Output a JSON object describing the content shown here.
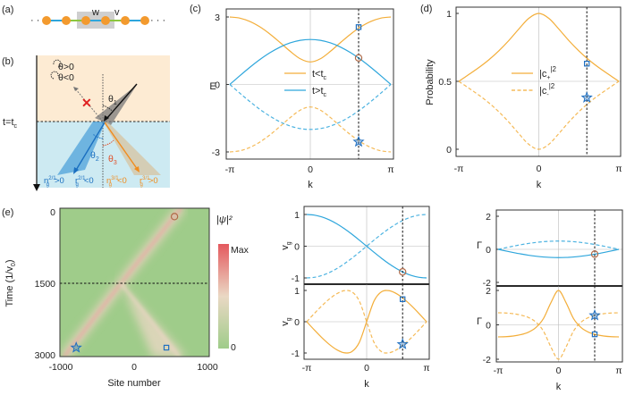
{
  "panel_labels": {
    "a": "(a)",
    "b": "(b)",
    "c": "(c)",
    "d": "(d)",
    "e": "(e)"
  },
  "colors": {
    "orange": "#f3ae3a",
    "blue": "#2ea6dc",
    "marker_blue": "#1f6fc0",
    "marker_brown": "#b06a48",
    "heat_low": "#9fcc8a",
    "heat_high": "#e4595e",
    "top_region": "#fdebd3",
    "bottom_region": "#cdeaf2"
  },
  "panel_a": {
    "dots": "· · ·",
    "w": "w",
    "v": "v"
  },
  "panel_b": {
    "theta_pos": "θ>0",
    "theta_neg": "θ<0",
    "t_label": "t=t",
    "t_sub": "c",
    "theta1": "θ",
    "theta1_sub": "1",
    "theta2": "θ",
    "theta2_sub": "2",
    "theta3": "θ",
    "theta3_sub": "3",
    "n_blue": "n",
    "n_blue_sub": "g",
    "n_blue_sup": "2/1",
    "n_blue_rel": ">0",
    "r_blue": "r",
    "r_blue_sub": "g",
    "r_blue_sup": "2/1",
    "r_blue_rel": "<0",
    "n_orange": "n",
    "n_orange_sub": "g",
    "n_orange_sup": "3/1",
    "n_orange_rel": "<0",
    "r_orange": "r",
    "r_orange_sub": "g",
    "r_orange_sup": "3/1",
    "r_orange_rel": ">0"
  },
  "chart_data": [
    {
      "id": "c",
      "type": "line",
      "xlabel": "k",
      "ylabel": "E",
      "xlim_over_pi": [
        -1,
        1
      ],
      "ylim": [
        -3,
        3
      ],
      "xticks": [
        "-π",
        "0",
        "π"
      ],
      "yticks": [
        {
          "v": 3,
          "t": "3"
        },
        {
          "v": 0,
          "t": "0"
        },
        {
          "v": -3,
          "t": "-3"
        }
      ],
      "x_over_pi": [
        -1,
        -0.875,
        -0.75,
        -0.625,
        -0.5,
        -0.375,
        -0.25,
        -0.125,
        0,
        0.125,
        0.25,
        0.375,
        0.5,
        0.625,
        0.75,
        0.875,
        1
      ],
      "legend": [
        {
          "text": "t<t",
          "sub": "c",
          "color": "orange"
        },
        {
          "text": "t>t",
          "sub": "c",
          "color": "blue"
        }
      ],
      "series": [
        {
          "name": "t<tc upper",
          "color": "orange",
          "dashed": false,
          "values": [
            3,
            2.949,
            2.798,
            2.556,
            2.236,
            1.863,
            1.474,
            1.142,
            1,
            1.142,
            1.474,
            1.863,
            2.236,
            2.556,
            2.798,
            2.949,
            3
          ]
        },
        {
          "name": "t<tc lower",
          "color": "orange",
          "dashed": true,
          "values": [
            -3,
            -2.949,
            -2.798,
            -2.556,
            -2.236,
            -1.863,
            -1.474,
            -1.142,
            -1,
            -1.142,
            -1.474,
            -1.863,
            -2.236,
            -2.556,
            -2.798,
            -2.949,
            -3
          ]
        },
        {
          "name": "t>tc upper",
          "color": "blue",
          "dashed": false,
          "values": [
            0,
            0.39,
            0.765,
            1.111,
            1.414,
            1.663,
            1.848,
            1.962,
            2,
            1.962,
            1.848,
            1.663,
            1.414,
            1.111,
            0.765,
            0.39,
            0
          ]
        },
        {
          "name": "t>tc lower",
          "color": "blue",
          "dashed": true,
          "values": [
            0,
            -0.39,
            -0.765,
            -1.111,
            -1.414,
            -1.663,
            -1.848,
            -1.962,
            -2,
            -1.962,
            -1.848,
            -1.663,
            -1.414,
            -1.111,
            -0.765,
            -0.39,
            0
          ]
        }
      ],
      "marker_k_over_pi": 0.6,
      "markers": [
        {
          "shape": "square",
          "y": 2.55
        },
        {
          "shape": "circle",
          "y": 1.18
        },
        {
          "shape": "star",
          "y": -2.55
        }
      ]
    },
    {
      "id": "d",
      "type": "line",
      "xlabel": "k",
      "ylabel": "Probability",
      "xlim_over_pi": [
        -1,
        1
      ],
      "ylim": [
        0,
        1
      ],
      "xticks": [
        "-π",
        "0",
        "π"
      ],
      "yticks": [
        {
          "v": 1,
          "t": "1"
        },
        {
          "v": 0.5,
          "t": "0.5"
        },
        {
          "v": 0,
          "t": "0"
        }
      ],
      "x_over_pi": [
        -1,
        -0.875,
        -0.75,
        -0.625,
        -0.5,
        -0.375,
        -0.25,
        -0.125,
        0,
        0.125,
        0.25,
        0.375,
        0.5,
        0.625,
        0.75,
        0.875,
        1
      ],
      "legend": [
        {
          "text": "|c",
          "sub": "+",
          "sup": "|2",
          "dashed": false
        },
        {
          "text": "|c",
          "sub": "-",
          "sup": "|2",
          "dashed": true
        }
      ],
      "series": [
        {
          "name": "|c+|^2",
          "color": "orange",
          "dashed": false,
          "values": [
            0.5,
            0.55,
            0.601,
            0.658,
            0.724,
            0.8,
            0.885,
            0.964,
            1,
            0.964,
            0.885,
            0.8,
            0.724,
            0.658,
            0.601,
            0.55,
            0.5
          ]
        },
        {
          "name": "|c-|^2",
          "color": "orange",
          "dashed": true,
          "values": [
            0.5,
            0.45,
            0.399,
            0.342,
            0.276,
            0.2,
            0.115,
            0.036,
            0,
            0.036,
            0.115,
            0.2,
            0.276,
            0.342,
            0.399,
            0.45,
            0.5
          ]
        }
      ],
      "marker_k_over_pi": 0.6,
      "markers": [
        {
          "shape": "square",
          "y": 0.63
        },
        {
          "shape": "star",
          "y": 0.38
        }
      ]
    },
    {
      "id": "vg_top",
      "type": "line",
      "xlabel": "",
      "ylabel": "v",
      "ylabel_sub": "g",
      "xlim_over_pi": [
        -1,
        1
      ],
      "ylim": [
        -1,
        1
      ],
      "xticks": [],
      "yticks": [
        {
          "v": 1,
          "t": "1"
        },
        {
          "v": 0,
          "t": "0"
        },
        {
          "v": -1,
          "t": "-1"
        }
      ],
      "x_over_pi": [
        -1,
        -0.875,
        -0.75,
        -0.625,
        -0.5,
        -0.375,
        -0.25,
        -0.125,
        0,
        0.125,
        0.25,
        0.375,
        0.5,
        0.625,
        0.75,
        0.875,
        1
      ],
      "series": [
        {
          "name": "t>tc upper vg",
          "color": "blue",
          "dashed": false,
          "values": [
            1,
            0.981,
            0.924,
            0.832,
            0.707,
            0.556,
            0.383,
            0.195,
            0,
            -0.195,
            -0.383,
            -0.556,
            -0.707,
            -0.832,
            -0.924,
            -0.981,
            -1
          ]
        },
        {
          "name": "t>tc lower vg",
          "color": "blue",
          "dashed": true,
          "values": [
            -1,
            -0.981,
            -0.924,
            -0.832,
            -0.707,
            -0.556,
            -0.383,
            -0.195,
            0,
            0.195,
            0.383,
            0.556,
            0.707,
            0.832,
            0.924,
            0.981,
            1
          ]
        }
      ],
      "marker_k_over_pi": 0.6,
      "markers": [
        {
          "shape": "circle",
          "y": -0.81
        }
      ]
    },
    {
      "id": "vg_bottom",
      "type": "line",
      "xlabel": "k",
      "ylabel": "v",
      "ylabel_sub": "g",
      "xlim_over_pi": [
        -1,
        1
      ],
      "ylim": [
        -1,
        1
      ],
      "xticks": [
        "-π",
        "0",
        "π"
      ],
      "yticks": [
        {
          "v": 1,
          "t": "1"
        },
        {
          "v": 0,
          "t": "0"
        },
        {
          "v": -1,
          "t": "-1"
        }
      ],
      "x_over_pi": [
        -1,
        -0.875,
        -0.75,
        -0.625,
        -0.5,
        -0.375,
        -0.25,
        -0.125,
        0,
        0.125,
        0.25,
        0.375,
        0.5,
        0.625,
        0.75,
        0.875,
        1
      ],
      "series": [
        {
          "name": "t<tc upper vg",
          "color": "orange",
          "dashed": false,
          "values": [
            0,
            -0.26,
            -0.505,
            -0.723,
            -0.894,
            -0.992,
            -0.959,
            -0.67,
            0,
            0.67,
            0.959,
            0.992,
            0.894,
            0.723,
            0.505,
            0.26,
            0
          ]
        },
        {
          "name": "t<tc lower vg",
          "color": "orange",
          "dashed": true,
          "values": [
            0,
            0.26,
            0.505,
            0.723,
            0.894,
            0.992,
            0.959,
            0.67,
            0,
            -0.67,
            -0.959,
            -0.992,
            -0.894,
            -0.723,
            -0.505,
            -0.26,
            0
          ]
        }
      ],
      "marker_k_over_pi": 0.6,
      "markers": [
        {
          "shape": "square",
          "y": 0.72
        },
        {
          "shape": "star",
          "y": -0.72
        }
      ]
    },
    {
      "id": "gamma_top",
      "type": "line",
      "xlabel": "",
      "ylabel": "Γ",
      "xlim_over_pi": [
        -1,
        1
      ],
      "ylim": [
        -2,
        2
      ],
      "xticks": [],
      "yticks": [
        {
          "v": 2,
          "t": "2"
        },
        {
          "v": 0,
          "t": "0"
        },
        {
          "v": -2,
          "t": "-2"
        }
      ],
      "x_over_pi": [
        -1,
        -0.875,
        -0.75,
        -0.625,
        -0.5,
        -0.375,
        -0.25,
        -0.125,
        0,
        0.125,
        0.25,
        0.375,
        0.5,
        0.625,
        0.75,
        0.875,
        1
      ],
      "series": [
        {
          "name": "t>tc upper Γ",
          "color": "blue",
          "dashed": false,
          "values": [
            0,
            -0.098,
            -0.191,
            -0.278,
            -0.354,
            -0.416,
            -0.462,
            -0.49,
            -0.5,
            -0.49,
            -0.462,
            -0.416,
            -0.354,
            -0.278,
            -0.191,
            -0.098,
            0
          ]
        },
        {
          "name": "t>tc lower Γ",
          "color": "blue",
          "dashed": true,
          "values": [
            0,
            0.098,
            0.191,
            0.278,
            0.354,
            0.416,
            0.462,
            0.49,
            0.5,
            0.49,
            0.462,
            0.416,
            0.354,
            0.278,
            0.191,
            0.098,
            0
          ]
        }
      ],
      "marker_k_over_pi": 0.6,
      "markers": [
        {
          "shape": "circle",
          "y": -0.29
        }
      ]
    },
    {
      "id": "gamma_bottom",
      "type": "line",
      "xlabel": "k",
      "ylabel": "Γ",
      "xlim_over_pi": [
        -1,
        1
      ],
      "ylim": [
        -2,
        2
      ],
      "xticks": [
        "-π",
        "0",
        "π"
      ],
      "yticks": [
        {
          "v": 2,
          "t": "2"
        },
        {
          "v": 0,
          "t": "0"
        },
        {
          "v": -2,
          "t": "-2"
        }
      ],
      "x_over_pi": [
        -1,
        -0.875,
        -0.75,
        -0.625,
        -0.5,
        -0.375,
        -0.25,
        -0.125,
        0,
        0.125,
        0.25,
        0.375,
        0.5,
        0.625,
        0.75,
        0.875,
        1
      ],
      "series": [
        {
          "name": "t<tc upper Γ",
          "color": "orange",
          "dashed": false,
          "values": [
            -0.7,
            -0.69,
            -0.65,
            -0.57,
            -0.43,
            -0.16,
            0.36,
            1.29,
            2,
            1.29,
            0.36,
            -0.16,
            -0.43,
            -0.57,
            -0.65,
            -0.69,
            -0.7
          ]
        },
        {
          "name": "t<tc lower Γ",
          "color": "orange",
          "dashed": true,
          "values": [
            0.7,
            0.69,
            0.65,
            0.57,
            0.43,
            0.16,
            -0.36,
            -1.29,
            -2,
            -1.29,
            -0.36,
            0.16,
            0.43,
            0.57,
            0.65,
            0.69,
            0.7
          ]
        }
      ],
      "marker_k_over_pi": 0.6,
      "markers": [
        {
          "shape": "star",
          "y": 0.55
        },
        {
          "shape": "square",
          "y": -0.55
        }
      ]
    },
    {
      "id": "e",
      "type": "heatmap",
      "xlabel": "Site number",
      "ylabel": "Time (1/v",
      "ylabel_sub": "0",
      "ylabel_end": ")",
      "xlim": [
        -1000,
        1000
      ],
      "ylim": [
        0,
        3000
      ],
      "xticks": [
        {
          "v": -1000,
          "t": "-1000"
        },
        {
          "v": 0,
          "t": "0"
        },
        {
          "v": 1000,
          "t": "1000"
        }
      ],
      "yticks": [
        {
          "v": 0,
          "t": "0"
        },
        {
          "v": 1500,
          "t": "1500"
        },
        {
          "v": 3000,
          "t": "3000"
        }
      ],
      "colorbar": {
        "title": "|ψ|²",
        "max_label": "Max",
        "min_label": "0"
      },
      "switch_time": 1500,
      "beams": [
        {
          "name": "incident-beam",
          "from": [
            650,
            -100
          ],
          "to": [
            -180,
            1500
          ],
          "intensity": 0.85
        },
        {
          "name": "transmitted-beam",
          "from": [
            -180,
            1500
          ],
          "to": [
            -960,
            3050
          ],
          "intensity": 0.8
        },
        {
          "name": "reflected-beam",
          "from": [
            -180,
            1500
          ],
          "to": [
            620,
            3050
          ],
          "intensity": 0.35
        }
      ],
      "markers": [
        {
          "shape": "circle",
          "site": 550,
          "time": 100
        },
        {
          "shape": "star",
          "site": -790,
          "time": 2850
        },
        {
          "shape": "square",
          "site": 440,
          "time": 2850
        }
      ]
    }
  ]
}
